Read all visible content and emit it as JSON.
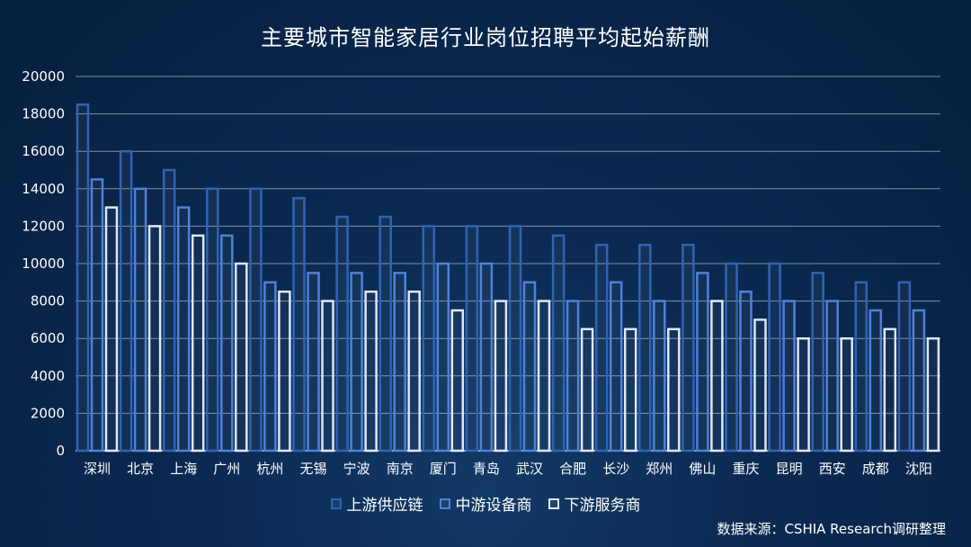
{
  "chart_data": {
    "type": "bar",
    "title": "主要城市智能家居行业岗位招聘平均起始薪酬",
    "categories": [
      "深圳",
      "北京",
      "上海",
      "广州",
      "杭州",
      "无锡",
      "宁波",
      "南京",
      "厦门",
      "青岛",
      "武汉",
      "合肥",
      "长沙",
      "郑州",
      "佛山",
      "重庆",
      "昆明",
      "西安",
      "成都",
      "沈阳"
    ],
    "series": [
      {
        "name": "上游供应链",
        "color": "#2f64b4",
        "values": [
          18500,
          16000,
          15000,
          14000,
          14000,
          13500,
          12500,
          12500,
          12000,
          12000,
          12000,
          11500,
          11000,
          11000,
          11000,
          10000,
          10000,
          9500,
          9000,
          9000
        ]
      },
      {
        "name": "中游设备商",
        "color": "#4f82d6",
        "values": [
          14500,
          14000,
          13000,
          11500,
          9000,
          9500,
          9500,
          9500,
          10000,
          10000,
          9000,
          8000,
          9000,
          8000,
          9500,
          8500,
          8000,
          8000,
          7500,
          7500
        ]
      },
      {
        "name": "下游服务商",
        "color": "#dfe8f6",
        "values": [
          13000,
          12000,
          11500,
          10000,
          8500,
          8000,
          8500,
          8500,
          7500,
          8000,
          8000,
          6500,
          6500,
          6500,
          8000,
          7000,
          6000,
          6000,
          6500,
          6000
        ]
      }
    ],
    "yticks": [
      "20000",
      "18000",
      "16000",
      "14000",
      "12000",
      "10000",
      "8000",
      "6000",
      "4000",
      "2000",
      "0"
    ],
    "ylim": [
      0,
      20000
    ],
    "grid": true,
    "legend_position": "bottom"
  },
  "source": "数据来源：CSHIA Research调研整理"
}
